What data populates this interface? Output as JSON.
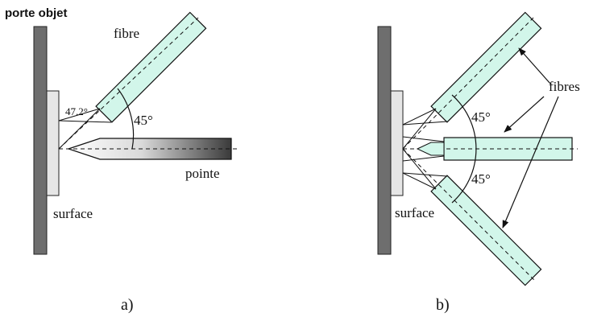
{
  "panel_a": {
    "holder_label": "porte objet",
    "fiber_label": "fibre",
    "angle_small": "47.2°",
    "angle_large": "45°",
    "tip_label": "pointe",
    "surface_label": "surface",
    "caption": "a)"
  },
  "panel_b": {
    "angle_top": "45°",
    "angle_bottom": "45°",
    "fibers_label": "fibres",
    "surface_label": "surface",
    "caption": "b)"
  },
  "colors": {
    "holder": "#6e6e6e",
    "surface": "#e6e6e6",
    "fiber_fill": "#d2f6ea",
    "line": "#111111"
  }
}
